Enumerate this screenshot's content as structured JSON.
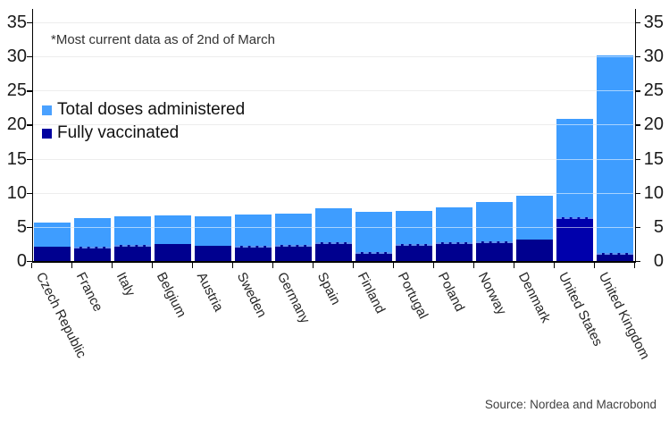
{
  "annotation": "*Most current data as of 2nd of March",
  "source": "Source: Nordea and Macrobond",
  "legend": {
    "items": [
      {
        "label": "Total doses administered",
        "color": "#4AA1FF"
      },
      {
        "label": "Fully vaccinated",
        "color": "#0000A0"
      }
    ],
    "position": "upper-left"
  },
  "colors": {
    "total_series": "#3E9DFF",
    "fully_series": "#00008F",
    "fully_series_us_override": "#0000AC",
    "gridline": "#D7D7D7",
    "axis": "#000000",
    "text": "#262626",
    "source_text": "#404040"
  },
  "chart_data": {
    "type": "bar",
    "subtype": "overlaid",
    "title": "",
    "xlabel": "",
    "ylabel": "",
    "annotation": "*Most current data as of 2nd of March",
    "ylim": [
      0,
      35
    ],
    "yticks": [
      0,
      5,
      10,
      15,
      20,
      25,
      30,
      35
    ],
    "y_axis_sides": [
      "left",
      "right"
    ],
    "grid": true,
    "legend_position": "upper-left",
    "categories": [
      "Czech Republic",
      "France",
      "Italy",
      "Belgium",
      "Austria",
      "Sweden",
      "Germany",
      "Spain",
      "Finland",
      "Portugal",
      "Poland",
      "Norway",
      "Denmark",
      "United States",
      "United Kingdom"
    ],
    "series": [
      {
        "name": "Total doses administered",
        "color": "#3E9DFF",
        "values": [
          5.7,
          6.3,
          6.6,
          6.7,
          6.5,
          6.8,
          6.9,
          7.7,
          7.2,
          7.4,
          7.8,
          8.7,
          9.6,
          20.9,
          30.1
        ]
      },
      {
        "name": "Fully vaccinated",
        "color": "#00008F",
        "values": [
          2.1,
          2.1,
          2.4,
          2.5,
          2.2,
          2.2,
          2.4,
          2.7,
          1.3,
          2.5,
          2.7,
          2.9,
          3.1,
          6.4,
          1.2
        ]
      }
    ],
    "latest_observation_dashed": [
      false,
      true,
      true,
      false,
      false,
      true,
      true,
      true,
      true,
      true,
      true,
      true,
      false,
      true,
      true
    ]
  }
}
